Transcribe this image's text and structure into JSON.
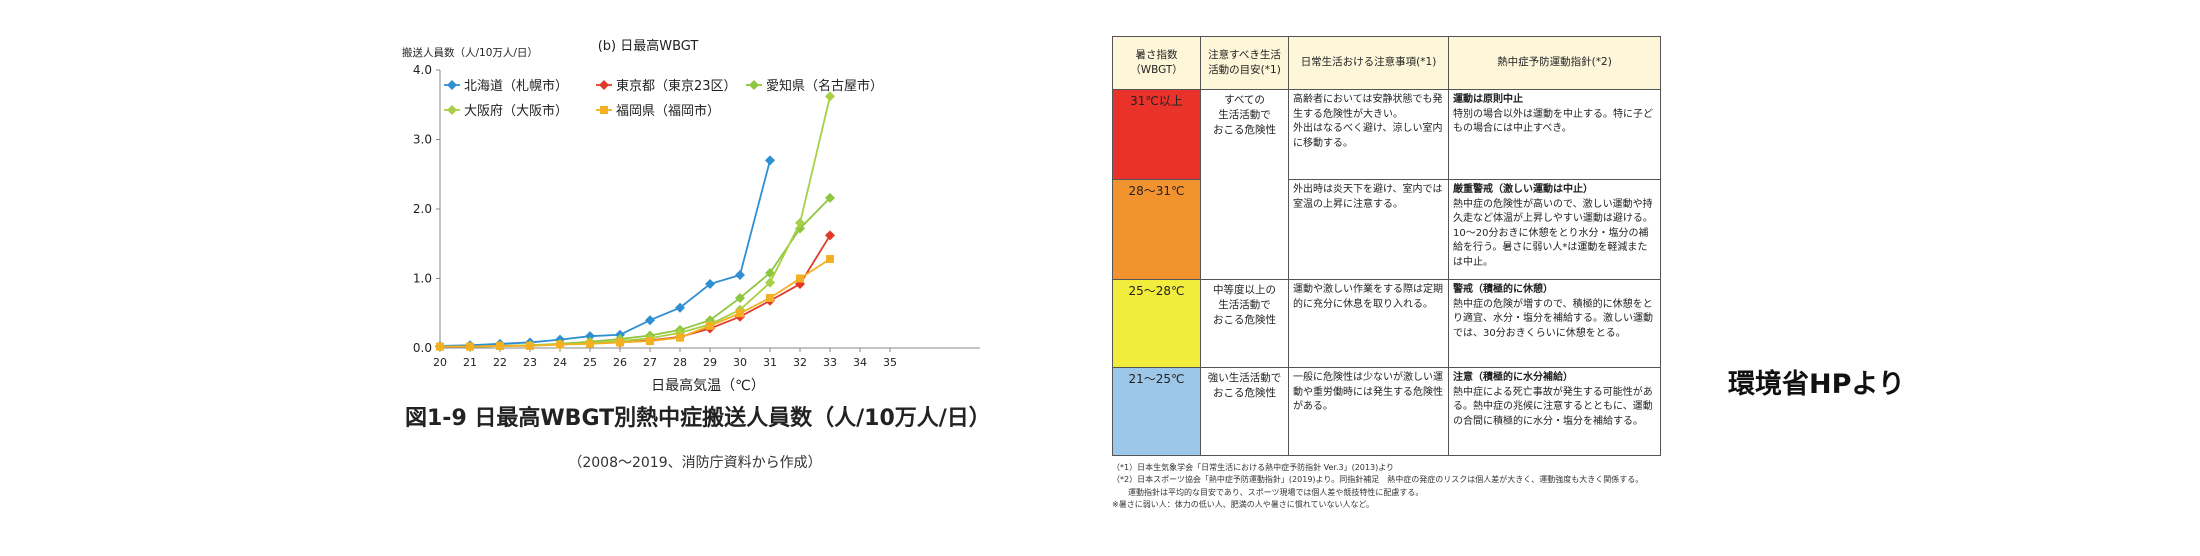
{
  "chart_data": {
    "type": "line",
    "title": "(b) 日最高WBGT",
    "ylabel": "搬送人員数（人/10万人/日）",
    "xlabel": "日最高気温（℃）",
    "x": [
      20,
      21,
      22,
      23,
      24,
      25,
      26,
      27,
      28,
      29,
      30,
      31,
      32,
      33
    ],
    "xticks": [
      "20",
      "21",
      "22",
      "23",
      "24",
      "25",
      "26",
      "27",
      "28",
      "29",
      "30",
      "31",
      "32",
      "33",
      "34",
      "35"
    ],
    "xlim": [
      20,
      38
    ],
    "ylim": [
      0,
      4
    ],
    "yticks": [
      "0.0",
      "1.0",
      "2.0",
      "3.0",
      "4.0"
    ],
    "grid": false,
    "legend_position": "top-left",
    "series": [
      {
        "name": "北海道（札幌市）",
        "color": "#2e8fd1",
        "marker": "diamond",
        "values": [
          0.03,
          0.04,
          0.06,
          0.08,
          0.12,
          0.17,
          0.19,
          0.4,
          0.58,
          0.92,
          1.05,
          2.7,
          null,
          null
        ]
      },
      {
        "name": "東京都（東京23区）",
        "color": "#e23a2a",
        "marker": "diamond",
        "values": [
          0.02,
          0.02,
          0.03,
          0.04,
          0.05,
          0.07,
          0.08,
          0.11,
          0.16,
          0.28,
          0.45,
          0.68,
          0.92,
          1.62
        ]
      },
      {
        "name": "愛知県（名古屋市）",
        "color": "#8dc63f",
        "marker": "diamond",
        "values": [
          0.02,
          0.02,
          0.03,
          0.04,
          0.06,
          0.09,
          0.13,
          0.18,
          0.26,
          0.4,
          0.72,
          1.08,
          1.72,
          2.16
        ]
      },
      {
        "name": "大阪府（大阪市）",
        "color": "#a8cf45",
        "marker": "diamond",
        "values": [
          0.02,
          0.02,
          0.03,
          0.04,
          0.05,
          0.07,
          0.1,
          0.14,
          0.22,
          0.34,
          0.55,
          0.94,
          1.8,
          3.62
        ]
      },
      {
        "name": "福岡県（福岡市）",
        "color": "#f3b022",
        "marker": "square",
        "values": [
          0.02,
          0.02,
          0.03,
          0.03,
          0.05,
          0.06,
          0.08,
          0.1,
          0.15,
          0.32,
          0.5,
          0.72,
          1.0,
          1.28
        ]
      }
    ],
    "caption": "図1-9 日最高WBGT別熱中症搬送人員数（人/10万人/日）",
    "source": "（2008〜2019、消防庁資料から作成）"
  },
  "table": {
    "headers": [
      "暑さ指数\n（WBGT）",
      "注意すべき生活\n活動の目安(*1)",
      "日常生活おける注意事項(*1)",
      "熱中症予防運動指針(*2)"
    ],
    "rows": [
      {
        "level": "31℃以上",
        "color": "#e8322a",
        "life": "すべての\n生活活動で\nおこる危険性",
        "caution": "高齢者においては安静状態でも発生する危険性が大きい。\n外出はなるべく避け、涼しい室内に移動する。",
        "guide_title": "運動は原則中止",
        "guide_text": "特別の場合以外は運動を中止する。特に子どもの場合には中止すべき。"
      },
      {
        "level": "28〜31℃",
        "color": "#f29330",
        "caution": "外出時は炎天下を避け、室内では室温の上昇に注意する。",
        "guide_title": "厳重警戒（激しい運動は中止）",
        "guide_text": "熱中症の危険性が高いので、激しい運動や持久走など体温が上昇しやすい運動は避ける。10〜20分おきに休憩をとり水分・塩分の補給を行う。暑さに弱い人*は運動を軽減または中止。"
      },
      {
        "level": "25〜28℃",
        "color": "#f2ec3d",
        "life": "中等度以上の\n生活活動で\nおこる危険性",
        "caution": "運動や激しい作業をする際は定期的に充分に休息を取り入れる。",
        "guide_title": "警戒（積極的に休憩）",
        "guide_text": "熱中症の危険が増すので、積極的に休憩をとり適宜、水分・塩分を補給する。激しい運動では、30分おきくらいに休憩をとる。"
      },
      {
        "level": "21〜25℃",
        "color": "#9dc7e8",
        "life": "強い生活活動で\nおこる危険性",
        "caution": "一般に危険性は少ないが激しい運動や重労働時には発生する危険性がある。",
        "guide_title": "注意（積極的に水分補給）",
        "guide_text": "熱中症による死亡事故が発生する可能性がある。熱中症の兆候に注意するとともに、運動の合間に積極的に水分・塩分を補給する。"
      }
    ],
    "notes": [
      "（*1）日本生気象学会「日常生活における熱中症予防指針 Ver.3」(2013)より",
      "（*2）日本スポーツ協会「熱中症予防運動指針」(2019)より。同指針補足　熱中症の発症のリスクは個人差が大きく、運動強度も大きく関係する。",
      "　　運動指針は平均的な目安であり、スポーツ現場では個人差や競技特性に配慮する。",
      "※暑さに弱い人：体力の低い人、肥満の人や暑さに慣れていない人など。"
    ]
  },
  "source_stamp": "環境省HPより"
}
